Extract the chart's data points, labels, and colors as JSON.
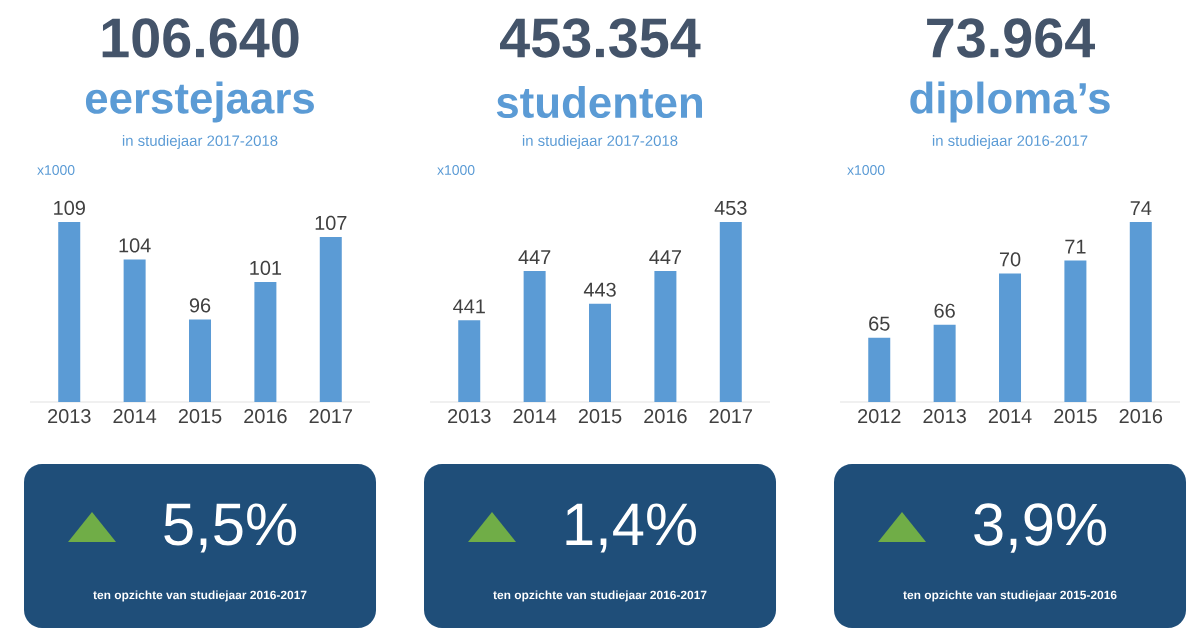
{
  "chart_data": [
    {
      "type": "bar",
      "title": "106.640",
      "subtitle": "eerstejaars",
      "ylabel": "x1000",
      "categories": [
        "2013",
        "2014",
        "2015",
        "2016",
        "2017"
      ],
      "values": [
        109,
        104,
        96,
        101,
        107
      ],
      "color": "#5b9bd5",
      "ylim": [
        85,
        109
      ],
      "data_labels": true,
      "tick_labels": "x",
      "annotations": [
        "in studiejaar 2017-2018",
        "5,5%",
        "ten opzichte van studiejaar 2016-2017"
      ]
    },
    {
      "type": "bar",
      "title": "453.354",
      "subtitle": "studenten",
      "ylabel": "x1000",
      "categories": [
        "2013",
        "2014",
        "2015",
        "2016",
        "2017"
      ],
      "values": [
        441,
        447,
        443,
        447,
        453
      ],
      "color": "#5b9bd5",
      "ylim": [
        431,
        453
      ],
      "data_labels": true,
      "tick_labels": "x",
      "annotations": [
        "in studiejaar 2017-2018",
        "1,4%",
        "ten opzichte van studiejaar 2016-2017"
      ]
    },
    {
      "type": "bar",
      "title": "73.964",
      "subtitle": "diploma’s",
      "ylabel": "x1000",
      "categories": [
        "2012",
        "2013",
        "2014",
        "2015",
        "2016"
      ],
      "values": [
        65,
        66,
        70,
        71,
        74
      ],
      "color": "#5b9bd5",
      "ylim": [
        60,
        74
      ],
      "data_labels": true,
      "tick_labels": "x",
      "annotations": [
        "in studiejaar 2016-2017",
        "3,9%",
        "ten opzichte van studiejaar 2015-2016"
      ]
    }
  ]
}
